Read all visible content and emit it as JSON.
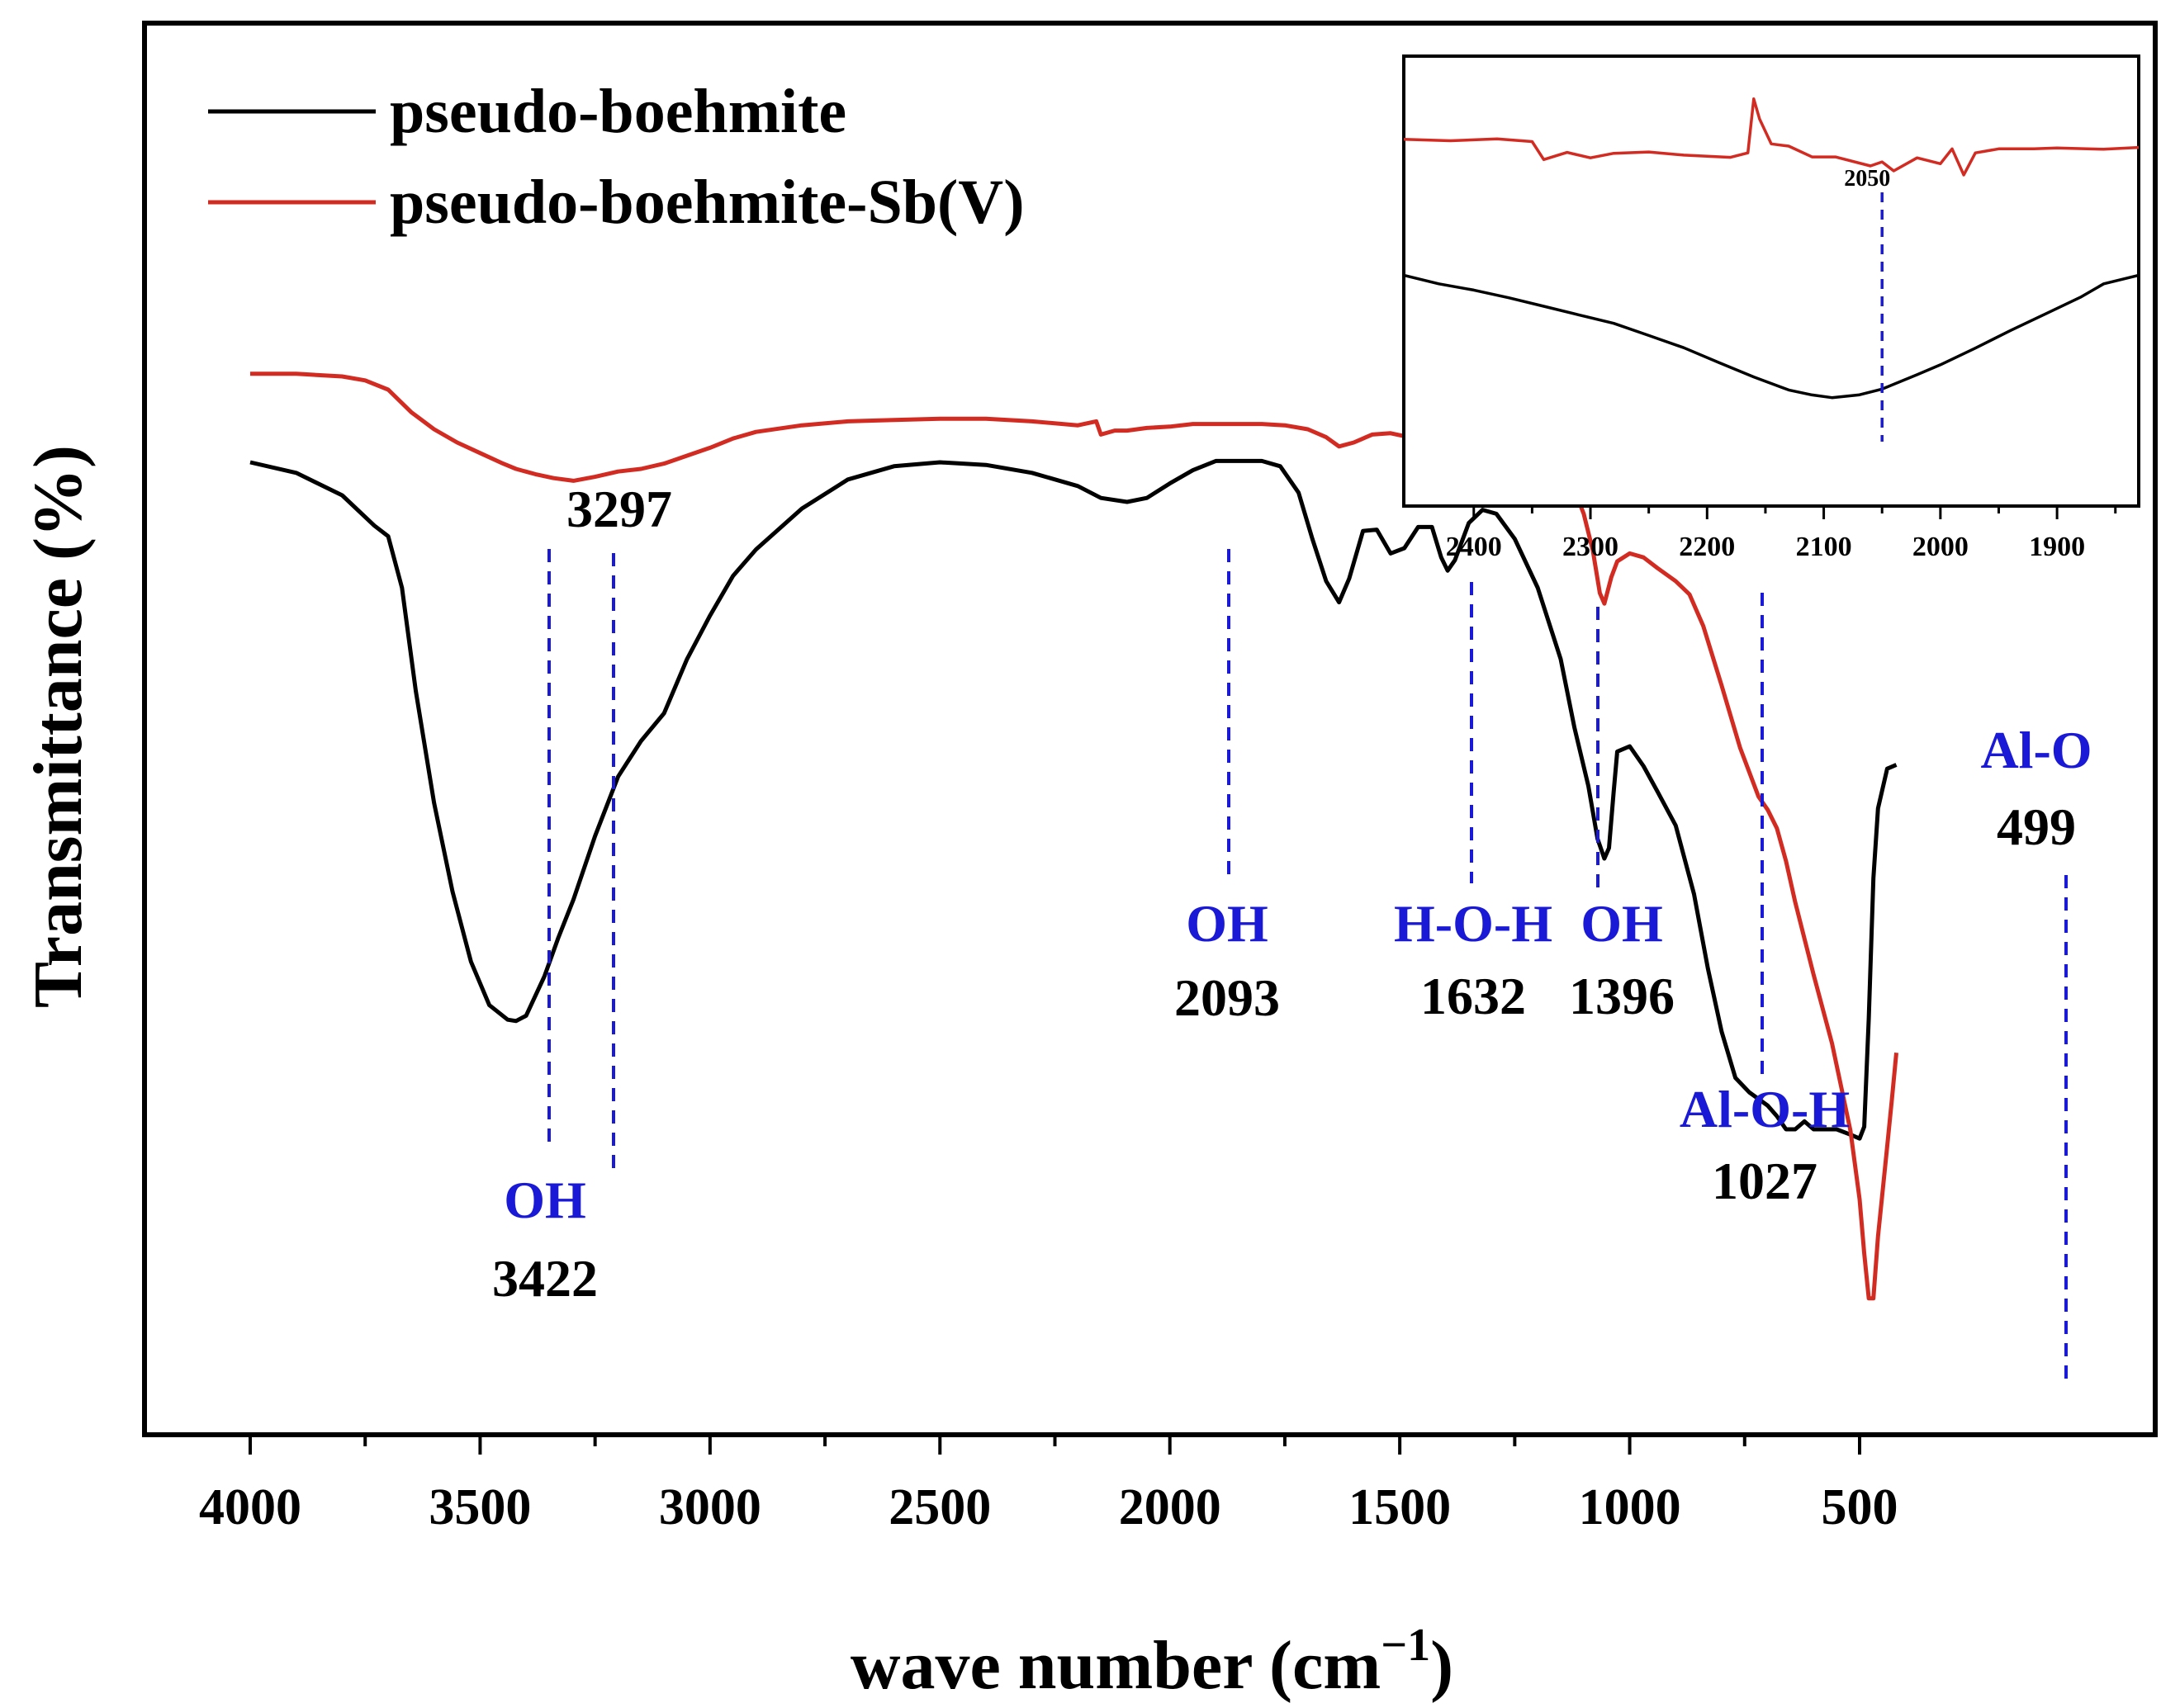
{
  "chart_data": {
    "type": "line",
    "title": "",
    "xlabel": "wave number (cm",
    "xlabel_sup": "−1",
    "xlabel_close": ")",
    "ylabel": "Transmittance (%)",
    "xlim": [
      4040,
      350
    ],
    "ylim": [
      0,
      100
    ],
    "x_ticks": [
      4000,
      3500,
      3000,
      2500,
      2000,
      1500,
      1000,
      500
    ],
    "y_ticks_visible": false,
    "grid": false,
    "legend_position": "top-left",
    "series": [
      {
        "name": "pseudo-boehmite",
        "color": "#000000",
        "points": [
          [
            4000,
            67.5
          ],
          [
            3900,
            66.7
          ],
          [
            3800,
            65.0
          ],
          [
            3730,
            62.7
          ],
          [
            3700,
            61.9
          ],
          [
            3670,
            58.0
          ],
          [
            3640,
            50.2
          ],
          [
            3600,
            41.7
          ],
          [
            3560,
            35.0
          ],
          [
            3520,
            29.7
          ],
          [
            3480,
            26.4
          ],
          [
            3440,
            25.3
          ],
          [
            3422,
            25.2
          ],
          [
            3400,
            25.6
          ],
          [
            3360,
            28.6
          ],
          [
            3330,
            31.5
          ],
          [
            3297,
            34.4
          ],
          [
            3250,
            39.2
          ],
          [
            3200,
            43.7
          ],
          [
            3150,
            46.4
          ],
          [
            3100,
            48.5
          ],
          [
            3050,
            52.6
          ],
          [
            3000,
            55.9
          ],
          [
            2950,
            58.9
          ],
          [
            2900,
            60.9
          ],
          [
            2800,
            64.0
          ],
          [
            2700,
            66.2
          ],
          [
            2600,
            67.2
          ],
          [
            2500,
            67.5
          ],
          [
            2400,
            67.3
          ],
          [
            2300,
            66.7
          ],
          [
            2200,
            65.7
          ],
          [
            2150,
            64.8
          ],
          [
            2093,
            64.5
          ],
          [
            2050,
            64.8
          ],
          [
            2000,
            65.9
          ],
          [
            1950,
            66.9
          ],
          [
            1900,
            67.6
          ],
          [
            1850,
            67.6
          ],
          [
            1800,
            67.6
          ],
          [
            1760,
            67.2
          ],
          [
            1720,
            65.2
          ],
          [
            1690,
            61.7
          ],
          [
            1660,
            58.5
          ],
          [
            1632,
            56.9
          ],
          [
            1610,
            58.7
          ],
          [
            1580,
            62.3
          ],
          [
            1550,
            62.4
          ],
          [
            1520,
            60.6
          ],
          [
            1490,
            61.0
          ],
          [
            1460,
            62.6
          ],
          [
            1430,
            62.6
          ],
          [
            1410,
            60.3
          ],
          [
            1396,
            59.3
          ],
          [
            1380,
            60.1
          ],
          [
            1350,
            62.9
          ],
          [
            1320,
            63.9
          ],
          [
            1290,
            63.6
          ],
          [
            1250,
            61.7
          ],
          [
            1200,
            58.0
          ],
          [
            1150,
            52.6
          ],
          [
            1120,
            47.4
          ],
          [
            1090,
            43.0
          ],
          [
            1070,
            39.0
          ],
          [
            1055,
            37.5
          ],
          [
            1045,
            38.3
          ],
          [
            1035,
            42.5
          ],
          [
            1027,
            45.6
          ],
          [
            1000,
            46.0
          ],
          [
            970,
            44.5
          ],
          [
            940,
            42.6
          ],
          [
            900,
            40.0
          ],
          [
            860,
            34.8
          ],
          [
            830,
            29.2
          ],
          [
            800,
            24.4
          ],
          [
            770,
            20.9
          ],
          [
            740,
            19.8
          ],
          [
            700,
            18.8
          ],
          [
            680,
            18.0
          ],
          [
            660,
            17.0
          ],
          [
            640,
            17.0
          ],
          [
            620,
            17.6
          ],
          [
            600,
            17.0
          ],
          [
            580,
            17.0
          ],
          [
            550,
            17.0
          ],
          [
            520,
            16.6
          ],
          [
            500,
            16.3
          ],
          [
            490,
            17.2
          ],
          [
            480,
            25.4
          ],
          [
            470,
            36.0
          ],
          [
            460,
            41.3
          ],
          [
            440,
            44.3
          ],
          [
            420,
            44.6
          ]
        ]
      },
      {
        "name": "pseudo-boehmite-Sb(V)",
        "color": "#d22b22",
        "points": [
          [
            4000,
            74.2
          ],
          [
            3900,
            74.2
          ],
          [
            3800,
            74.0
          ],
          [
            3750,
            73.7
          ],
          [
            3700,
            73.0
          ],
          [
            3650,
            71.3
          ],
          [
            3600,
            70.0
          ],
          [
            3550,
            69.0
          ],
          [
            3500,
            68.2
          ],
          [
            3450,
            67.4
          ],
          [
            3422,
            67.0
          ],
          [
            3380,
            66.6
          ],
          [
            3340,
            66.3
          ],
          [
            3297,
            66.1
          ],
          [
            3250,
            66.4
          ],
          [
            3200,
            66.8
          ],
          [
            3150,
            67.0
          ],
          [
            3100,
            67.4
          ],
          [
            3050,
            68.0
          ],
          [
            3000,
            68.6
          ],
          [
            2950,
            69.3
          ],
          [
            2900,
            69.8
          ],
          [
            2800,
            70.3
          ],
          [
            2700,
            70.6
          ],
          [
            2600,
            70.7
          ],
          [
            2500,
            70.8
          ],
          [
            2400,
            70.8
          ],
          [
            2300,
            70.6
          ],
          [
            2200,
            70.3
          ],
          [
            2160,
            70.6
          ],
          [
            2150,
            69.6
          ],
          [
            2120,
            69.9
          ],
          [
            2093,
            69.9
          ],
          [
            2050,
            70.1
          ],
          [
            2000,
            70.2
          ],
          [
            1950,
            70.4
          ],
          [
            1900,
            70.4
          ],
          [
            1850,
            70.4
          ],
          [
            1800,
            70.4
          ],
          [
            1750,
            70.3
          ],
          [
            1700,
            70.0
          ],
          [
            1660,
            69.4
          ],
          [
            1632,
            68.7
          ],
          [
            1600,
            69.0
          ],
          [
            1560,
            69.6
          ],
          [
            1520,
            69.7
          ],
          [
            1480,
            69.4
          ],
          [
            1440,
            69.0
          ],
          [
            1396,
            68.7
          ],
          [
            1370,
            69.2
          ],
          [
            1340,
            69.7
          ],
          [
            1310,
            69.7
          ],
          [
            1280,
            69.5
          ],
          [
            1250,
            69.1
          ],
          [
            1200,
            68.2
          ],
          [
            1150,
            67.0
          ],
          [
            1120,
            65.4
          ],
          [
            1100,
            63.6
          ],
          [
            1080,
            60.8
          ],
          [
            1065,
            57.6
          ],
          [
            1055,
            56.8
          ],
          [
            1040,
            58.8
          ],
          [
            1027,
            60.0
          ],
          [
            1000,
            60.6
          ],
          [
            970,
            60.3
          ],
          [
            940,
            59.5
          ],
          [
            900,
            58.5
          ],
          [
            870,
            57.5
          ],
          [
            840,
            55.1
          ],
          [
            800,
            50.6
          ],
          [
            760,
            45.9
          ],
          [
            720,
            42.2
          ],
          [
            700,
            41.2
          ],
          [
            680,
            39.8
          ],
          [
            660,
            37.3
          ],
          [
            640,
            34.2
          ],
          [
            600,
            28.7
          ],
          [
            560,
            23.5
          ],
          [
            520,
            16.9
          ],
          [
            500,
            11.7
          ],
          [
            490,
            7.6
          ],
          [
            480,
            4.2
          ],
          [
            470,
            4.2
          ],
          [
            460,
            8.9
          ],
          [
            440,
            15.7
          ],
          [
            430,
            19.2
          ],
          [
            420,
            22.8
          ]
        ]
      }
    ],
    "annotations": [
      {
        "x": 3422,
        "label": "OH",
        "value": "3422"
      },
      {
        "x": 3297,
        "label": "",
        "value": "3297"
      },
      {
        "x": 2093,
        "label": "OH",
        "value": "2093"
      },
      {
        "x": 1632,
        "label": "H-O-H",
        "value": "1632"
      },
      {
        "x": 1396,
        "label": "OH",
        "value": "1396"
      },
      {
        "x": 1027,
        "label": "Al-O-H",
        "value": "1027"
      },
      {
        "x": 499,
        "label": "Al-O",
        "value": "499"
      }
    ],
    "inset": {
      "type": "line",
      "xlim": [
        2460,
        1830
      ],
      "x_ticks": [
        2400,
        2300,
        2200,
        2100,
        2000,
        1900
      ],
      "marker": {
        "x": 2050,
        "label": "2050"
      },
      "series": [
        {
          "name": "pseudo-boehmite-Sb(V)",
          "color": "#d22b22",
          "points": [
            [
              2460,
              81.5
            ],
            [
              2420,
              81.2
            ],
            [
              2380,
              81.6
            ],
            [
              2350,
              81.0
            ],
            [
              2340,
              77.0
            ],
            [
              2320,
              78.6
            ],
            [
              2300,
              77.4
            ],
            [
              2280,
              78.4
            ],
            [
              2250,
              78.7
            ],
            [
              2220,
              78.0
            ],
            [
              2180,
              77.5
            ],
            [
              2165,
              78.5
            ],
            [
              2160,
              90.5
            ],
            [
              2155,
              86.0
            ],
            [
              2145,
              80.5
            ],
            [
              2130,
              80.0
            ],
            [
              2110,
              77.6
            ],
            [
              2090,
              77.6
            ],
            [
              2060,
              75.6
            ],
            [
              2050,
              76.5
            ],
            [
              2040,
              74.5
            ],
            [
              2020,
              77.4
            ],
            [
              2000,
              76.1
            ],
            [
              1990,
              79.4
            ],
            [
              1980,
              73.6
            ],
            [
              1970,
              78.5
            ],
            [
              1950,
              79.4
            ],
            [
              1920,
              79.4
            ],
            [
              1900,
              79.6
            ],
            [
              1860,
              79.3
            ],
            [
              1830,
              79.7
            ]
          ]
        },
        {
          "name": "pseudo-boehmite",
          "color": "#000000",
          "points": [
            [
              2460,
              51.3
            ],
            [
              2430,
              49.4
            ],
            [
              2400,
              48.0
            ],
            [
              2370,
              46.3
            ],
            [
              2340,
              44.4
            ],
            [
              2310,
              42.5
            ],
            [
              2280,
              40.6
            ],
            [
              2250,
              37.9
            ],
            [
              2220,
              35.2
            ],
            [
              2190,
              31.9
            ],
            [
              2160,
              28.7
            ],
            [
              2130,
              25.8
            ],
            [
              2110,
              24.7
            ],
            [
              2093,
              24.1
            ],
            [
              2070,
              24.7
            ],
            [
              2050,
              26.0
            ],
            [
              2020,
              29.2
            ],
            [
              2000,
              31.4
            ],
            [
              1970,
              35.1
            ],
            [
              1940,
              39.0
            ],
            [
              1910,
              42.7
            ],
            [
              1880,
              46.4
            ],
            [
              1860,
              49.4
            ],
            [
              1830,
              51.3
            ]
          ]
        }
      ]
    }
  }
}
